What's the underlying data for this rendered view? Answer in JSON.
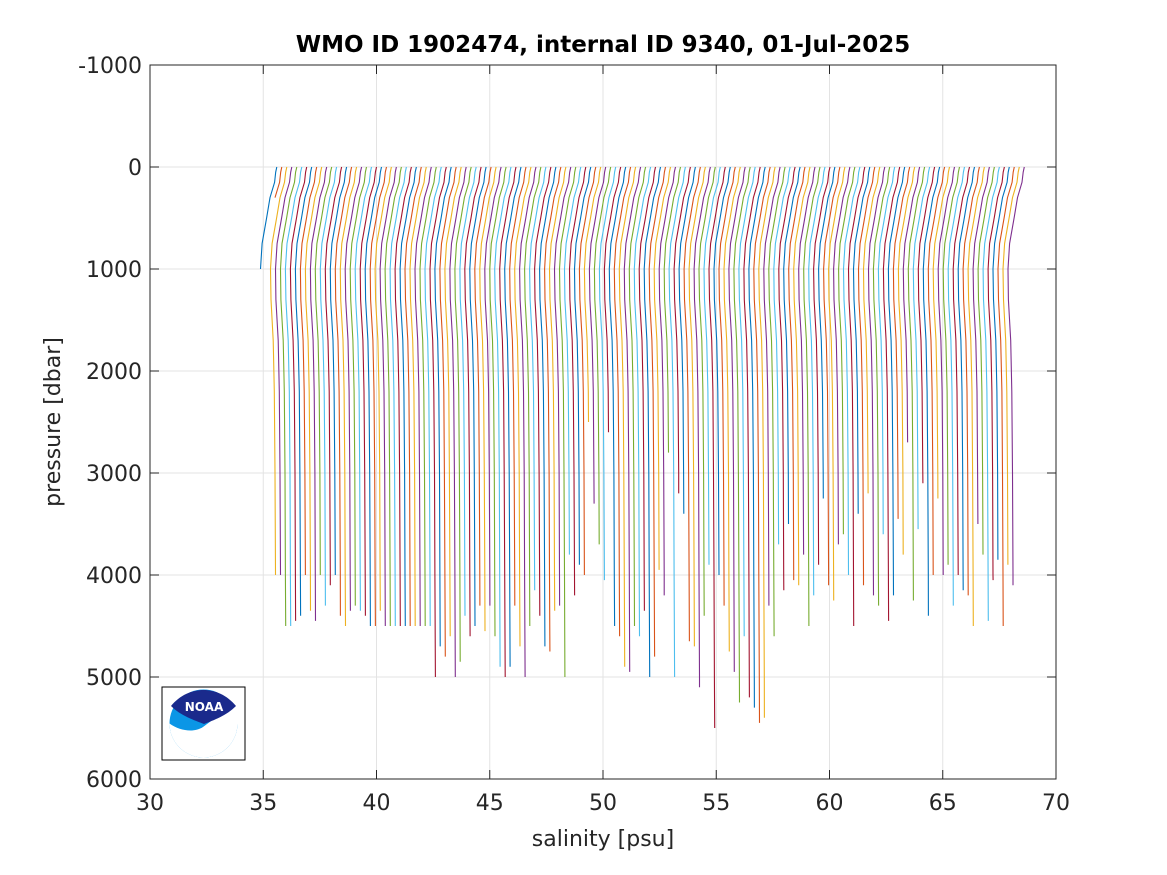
{
  "chart_data": {
    "type": "line",
    "title": "WMO ID 1902474, internal ID 9340, 01-Jul-2025",
    "xlabel": "salinity [psu]",
    "ylabel": "pressure [dbar]",
    "xlim": [
      30,
      70
    ],
    "ylim": [
      -1000,
      6000
    ],
    "y_reversed": true,
    "grid": true,
    "x_ticks": [
      30,
      35,
      40,
      45,
      50,
      55,
      60,
      65,
      70
    ],
    "y_ticks": [
      -1000,
      0,
      1000,
      2000,
      3000,
      4000,
      5000,
      6000
    ],
    "x_tick_labels": [
      "30",
      "35",
      "40",
      "45",
      "50",
      "55",
      "60",
      "65",
      "70"
    ],
    "y_tick_labels": [
      "-1000",
      "0",
      "1000",
      "2000",
      "3000",
      "4000",
      "5000",
      "6000"
    ],
    "colors": [
      "#0072BD",
      "#D95319",
      "#EDB120",
      "#7E2F8E",
      "#77AC30",
      "#4DBEEE",
      "#A2142F"
    ],
    "profile_offset": 0.22,
    "profile_offset_start": 35.5,
    "profile_shape": {
      "pressure": [
        0,
        50,
        150,
        300,
        500,
        750,
        1000,
        1300,
        1700,
        2200,
        3000,
        4000,
        5000,
        5500
      ],
      "salinity_delta": [
        0.1,
        0.05,
        0.0,
        -0.2,
        -0.35,
        -0.55,
        -0.62,
        -0.6,
        -0.5,
        -0.45,
        -0.42,
        -0.4,
        -0.38,
        -0.37
      ]
    },
    "profile_max_pressure": [
      1000,
      300,
      4000,
      4000,
      4500,
      4500,
      4450,
      4400,
      4000,
      4350,
      4450,
      4000,
      4300,
      4100,
      4000,
      4400,
      4500,
      4350,
      4300,
      4350,
      4400,
      4500,
      4500,
      4350,
      4500,
      4500,
      4500,
      4500,
      4500,
      4500,
      4500,
      4500,
      4500,
      4500,
      5000,
      4700,
      4800,
      4600,
      5000,
      4850,
      4400,
      4600,
      4500,
      4300,
      4550,
      4300,
      4600,
      4900,
      5000,
      4900,
      4300,
      4700,
      5000,
      4500,
      4150,
      4400,
      4700,
      4750,
      4350,
      4300,
      5000,
      3800,
      4200,
      3900,
      4000,
      2500,
      3300,
      3700,
      4050,
      2600,
      4500,
      4600,
      4900,
      4950,
      4500,
      4600,
      4350,
      5000,
      4800,
      3950,
      4200,
      2800,
      5000,
      3200,
      3400,
      4650,
      4700,
      5100,
      4400,
      3900,
      5500,
      4000,
      4300,
      4750,
      4950,
      5250,
      4600,
      5200,
      5300,
      5450,
      5400,
      4300,
      4600,
      3700,
      4150,
      3500,
      4050,
      4100,
      3800,
      4500,
      4200,
      3900,
      3250,
      4100,
      4250,
      3700,
      3600,
      4000,
      4500,
      3400,
      4100,
      3200,
      4200,
      4300,
      3600,
      4450,
      4200,
      3450,
      3800,
      2700,
      4250,
      3550,
      3100,
      4400,
      4000,
      3250,
      4000,
      3900,
      4300,
      4000,
      4150,
      4200,
      4500,
      3500,
      3800,
      4450,
      4050,
      3850,
      4500,
      3900,
      4100
    ]
  },
  "logo": {
    "label": "NOAA",
    "colors": {
      "navy": "#1a2a8c",
      "sky": "#0b96e6",
      "white": "#ffffff"
    }
  }
}
